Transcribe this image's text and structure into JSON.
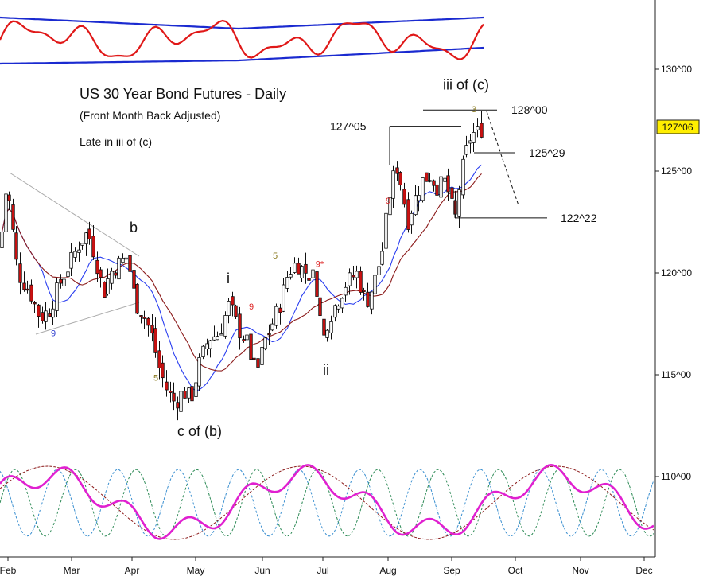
{
  "chart_data": {
    "type": "candlestick",
    "title": "US 30 Year Bond Futures - Daily",
    "subtitle": "(Front Month Back Adjusted)",
    "note": "Late in iii of (c)",
    "last_price_label": "127^06",
    "last_price": 127.19,
    "y_axis": {
      "range": [
        111,
        133
      ],
      "ticks": [
        {
          "value": 130,
          "label": "130^00"
        },
        {
          "value": 125,
          "label": "125^00"
        },
        {
          "value": 120,
          "label": "120^00"
        },
        {
          "value": 115,
          "label": "115^00"
        },
        {
          "value": 110,
          "label": "110^00"
        }
      ]
    },
    "x_axis": {
      "months": [
        "Feb",
        "Mar",
        "Apr",
        "May",
        "Jun",
        "Jul",
        "Aug",
        "Sep",
        "Oct",
        "Nov",
        "Dec"
      ]
    },
    "close_path": [
      [
        0,
        121.2
      ],
      [
        8,
        124.5
      ],
      [
        22,
        120.0
      ],
      [
        38,
        119.0
      ],
      [
        50,
        117.8
      ],
      [
        62,
        118.2
      ],
      [
        75,
        119.5
      ],
      [
        88,
        120.5
      ],
      [
        100,
        121.5
      ],
      [
        110,
        122.0
      ],
      [
        118,
        121.0
      ],
      [
        130,
        119.0
      ],
      [
        138,
        120.0
      ],
      [
        150,
        120.5
      ],
      [
        160,
        120.8
      ],
      [
        170,
        118.5
      ],
      [
        180,
        118.0
      ],
      [
        190,
        117.0
      ],
      [
        200,
        115.3
      ],
      [
        210,
        114.2
      ],
      [
        220,
        113.6
      ],
      [
        230,
        114.2
      ],
      [
        240,
        113.8
      ],
      [
        250,
        115.5
      ],
      [
        262,
        116.8
      ],
      [
        275,
        117.0
      ],
      [
        288,
        118.5
      ],
      [
        300,
        117.2
      ],
      [
        310,
        116.6
      ],
      [
        322,
        115.0
      ],
      [
        332,
        116.6
      ],
      [
        342,
        117.5
      ],
      [
        352,
        118.5
      ],
      [
        362,
        120.0
      ],
      [
        372,
        120.5
      ],
      [
        385,
        120.0
      ],
      [
        395,
        119.8
      ],
      [
        400,
        118.8
      ],
      [
        405,
        116.5
      ],
      [
        410,
        117.5
      ],
      [
        422,
        118.5
      ],
      [
        435,
        119.5
      ],
      [
        448,
        120.0
      ],
      [
        460,
        118.5
      ],
      [
        470,
        119.5
      ],
      [
        480,
        121.0
      ],
      [
        490,
        124.0
      ],
      [
        498,
        125.3
      ],
      [
        505,
        124.2
      ],
      [
        512,
        122.5
      ],
      [
        520,
        123.5
      ],
      [
        530,
        124.5
      ],
      [
        540,
        124.8
      ],
      [
        550,
        124.2
      ],
      [
        560,
        124.5
      ],
      [
        568,
        123.2
      ],
      [
        572,
        122.6
      ],
      [
        578,
        124.5
      ],
      [
        585,
        125.8
      ],
      [
        592,
        126.8
      ],
      [
        600,
        126.9
      ],
      [
        608,
        127.2
      ]
    ],
    "moving_averages": [
      {
        "color": "#2a3ef0",
        "lag": 5
      },
      {
        "color": "#8b1a1a",
        "lag": 9
      }
    ],
    "wave_labels": [
      {
        "text": "b",
        "x": 168,
        "price": 122.0,
        "size": 18
      },
      {
        "text": "i",
        "x": 287,
        "price": 119.5,
        "size": 18
      },
      {
        "text": "ii",
        "x": 410,
        "price": 115.0,
        "size": 18
      },
      {
        "text": "c of (b)",
        "x": 251,
        "price": 112.0,
        "size": 18
      },
      {
        "text": "iii of (c)",
        "x": 586,
        "price": 129.0,
        "size": 18
      }
    ],
    "level_labels": [
      {
        "text": "127^05",
        "price": 127.2,
        "x1": 490,
        "x2": 580,
        "label_x": 415,
        "label_side": "left"
      },
      {
        "text": "128^00",
        "price": 128.0,
        "x1": 532,
        "x2": 625,
        "label_x": 643,
        "label_side": "right"
      },
      {
        "text": "125^29",
        "price": 125.9,
        "x1": 596,
        "x2": 647,
        "label_x": 665,
        "label_side": "right"
      },
      {
        "text": "122^22",
        "price": 122.7,
        "x1": 572,
        "x2": 688,
        "label_x": 705,
        "label_side": "right"
      }
    ],
    "count_labels": [
      {
        "text": "9",
        "x": 67,
        "price": 116.9,
        "color": "#2233cc"
      },
      {
        "text": "5",
        "x": 196,
        "price": 114.7,
        "color": "#8a7a20"
      },
      {
        "text": "9",
        "x": 316,
        "price": 118.2,
        "color": "#dd2222"
      },
      {
        "text": "5",
        "x": 346,
        "price": 120.7,
        "color": "#8a7a20"
      },
      {
        "text": "9*",
        "x": 402,
        "price": 120.3,
        "color": "#dd2222"
      },
      {
        "text": "9",
        "x": 488,
        "price": 123.4,
        "color": "#dd2222"
      },
      {
        "text": "3",
        "x": 596,
        "price": 127.9,
        "color": "#8a7a20"
      }
    ]
  }
}
